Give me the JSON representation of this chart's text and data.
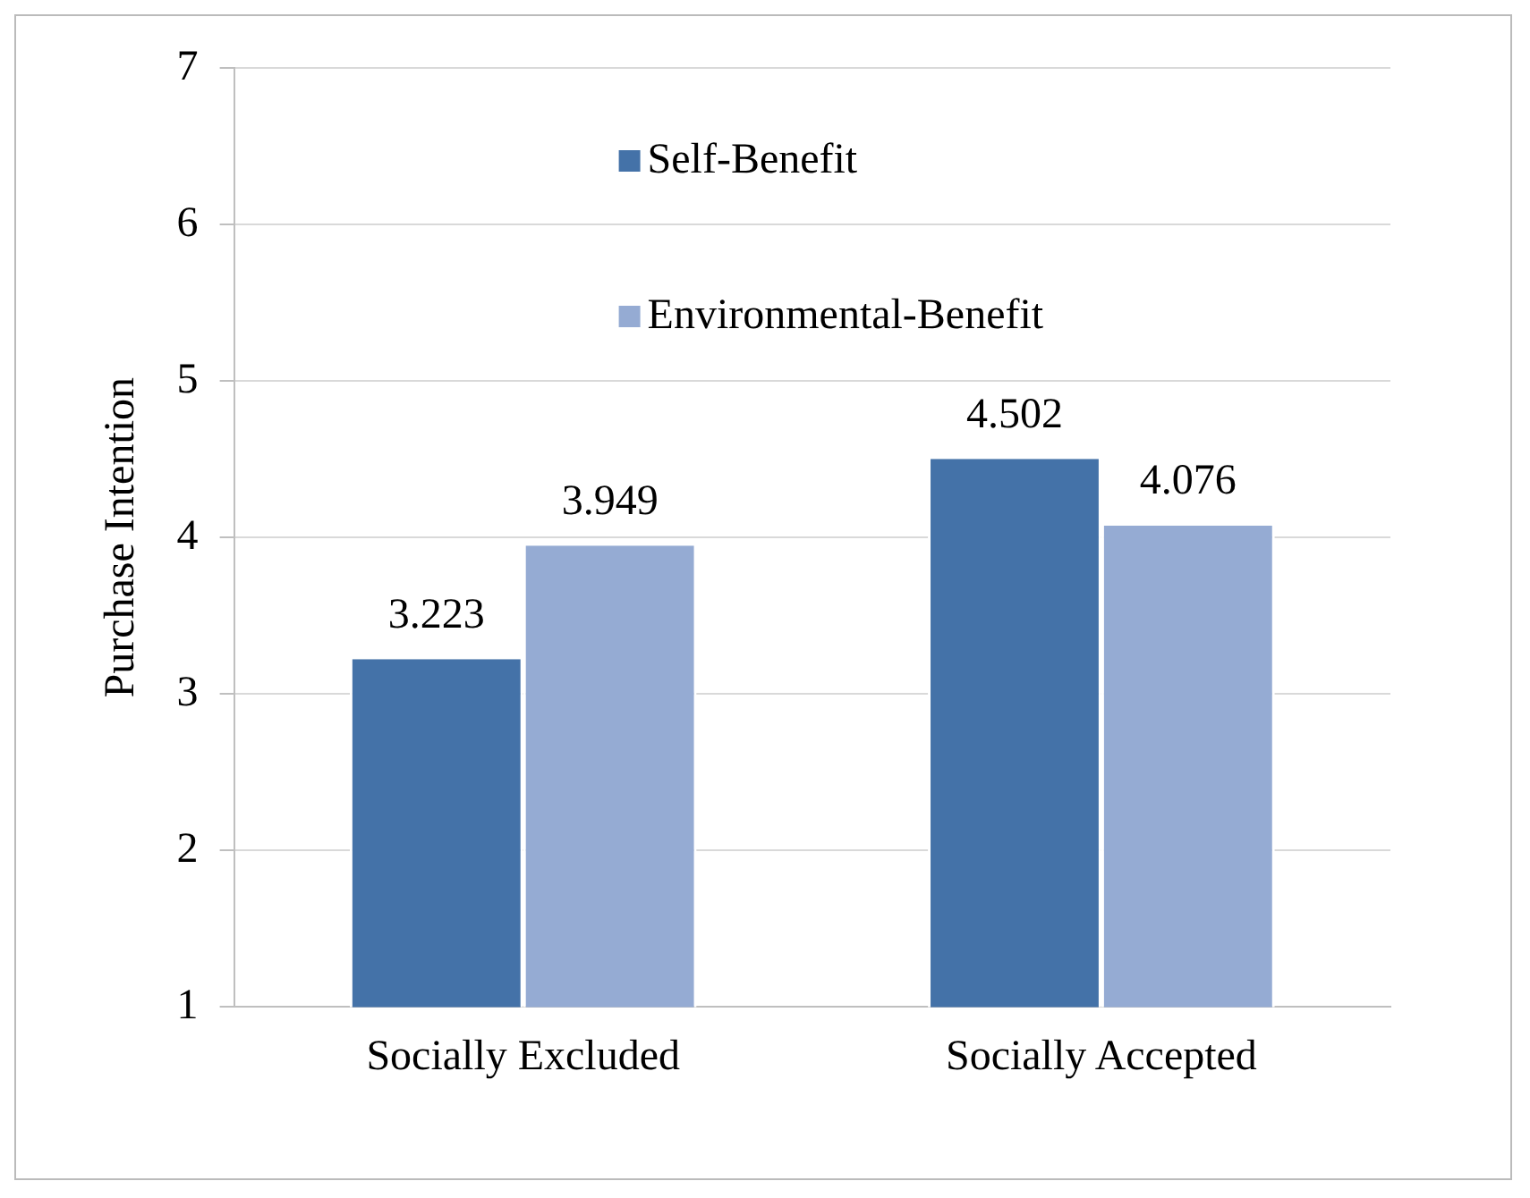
{
  "chart_data": {
    "type": "bar",
    "ylabel": "Purchase Intention",
    "categories": [
      "Socially Excluded",
      "Socially Accepted"
    ],
    "series": [
      {
        "name": "Self-Benefit",
        "color": "#4472a8",
        "values": [
          3.223,
          4.502
        ]
      },
      {
        "name": "Environmental-Benefit",
        "color": "#95abd3",
        "values": [
          3.949,
          4.076
        ]
      }
    ],
    "ylim": [
      1,
      7
    ],
    "yticks": [
      1,
      2,
      3,
      4,
      5,
      6,
      7
    ],
    "grid": "y",
    "legend": "top",
    "data_labels": true
  }
}
